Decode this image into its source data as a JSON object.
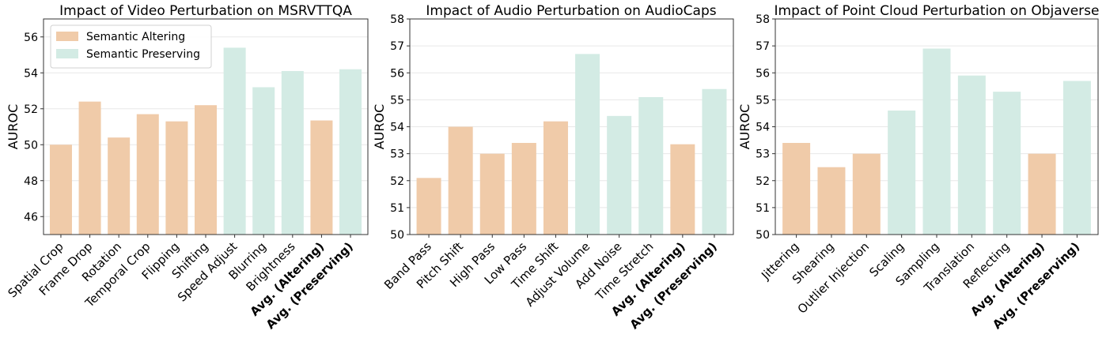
{
  "colors": {
    "altering": "#f0cba9",
    "preserving": "#d3ebe4",
    "grid": "#e8e8e8",
    "axis": "#333333"
  },
  "legend": {
    "placement": "top-left",
    "items": [
      {
        "label": "Semantic Altering",
        "color": "#f0cba9"
      },
      {
        "label": "Semantic Preserving",
        "color": "#d3ebe4"
      }
    ]
  },
  "chart_data": [
    {
      "type": "bar",
      "title": "Impact of Video Perturbation on MSRVTTQA",
      "xlabel": "",
      "ylabel": "AUROC",
      "ylim": [
        45,
        57
      ],
      "yticks": [
        46,
        48,
        50,
        52,
        54,
        56
      ],
      "grid": true,
      "legend": true,
      "categories": [
        "Spatial Crop",
        "Frame Drop",
        "Rotation",
        "Temporal Crop",
        "Flipping",
        "Shifting",
        "Speed Adjust",
        "Blurring",
        "Brightness",
        "Avg. (Altering)",
        "Avg. (Preserving)"
      ],
      "values": [
        50.0,
        52.4,
        50.4,
        51.7,
        51.3,
        52.2,
        55.4,
        53.2,
        54.1,
        51.35,
        54.2
      ],
      "groups": [
        "altering",
        "altering",
        "altering",
        "altering",
        "altering",
        "altering",
        "preserving",
        "preserving",
        "preserving",
        "altering",
        "preserving"
      ],
      "bold": [
        false,
        false,
        false,
        false,
        false,
        false,
        false,
        false,
        false,
        true,
        true
      ]
    },
    {
      "type": "bar",
      "title": "Impact of Audio Perturbation on AudioCaps",
      "xlabel": "",
      "ylabel": "AUROC",
      "ylim": [
        50,
        58
      ],
      "yticks": [
        50,
        51,
        52,
        53,
        54,
        55,
        56,
        57,
        58
      ],
      "grid": true,
      "legend": false,
      "categories": [
        "Band Pass",
        "Pitch Shift",
        "High Pass",
        "Low Pass",
        "Time Shift",
        "Adjust Volume",
        "Add Noise",
        "Time Stretch",
        "Avg. (Altering)",
        "Avg. (Preserving)"
      ],
      "values": [
        52.1,
        54.0,
        53.0,
        53.4,
        54.2,
        56.7,
        54.4,
        55.1,
        53.35,
        55.4
      ],
      "groups": [
        "altering",
        "altering",
        "altering",
        "altering",
        "altering",
        "preserving",
        "preserving",
        "preserving",
        "altering",
        "preserving"
      ],
      "bold": [
        false,
        false,
        false,
        false,
        false,
        false,
        false,
        false,
        true,
        true
      ]
    },
    {
      "type": "bar",
      "title": "Impact of Point Cloud Perturbation on Objaverse",
      "xlabel": "",
      "ylabel": "AUROC",
      "ylim": [
        50,
        58
      ],
      "yticks": [
        50,
        51,
        52,
        53,
        54,
        55,
        56,
        57,
        58
      ],
      "grid": true,
      "legend": false,
      "categories": [
        "Jittering",
        "Shearing",
        "Outlier Injection",
        "Scaling",
        "Sampling",
        "Translation",
        "Reflecting",
        "Avg. (Altering)",
        "Avg. (Preserving)"
      ],
      "values": [
        53.4,
        52.5,
        53.0,
        54.6,
        56.9,
        55.9,
        55.3,
        53.0,
        55.7
      ],
      "groups": [
        "altering",
        "altering",
        "altering",
        "preserving",
        "preserving",
        "preserving",
        "preserving",
        "altering",
        "preserving"
      ],
      "bold": [
        false,
        false,
        false,
        false,
        false,
        false,
        false,
        true,
        true
      ]
    }
  ]
}
